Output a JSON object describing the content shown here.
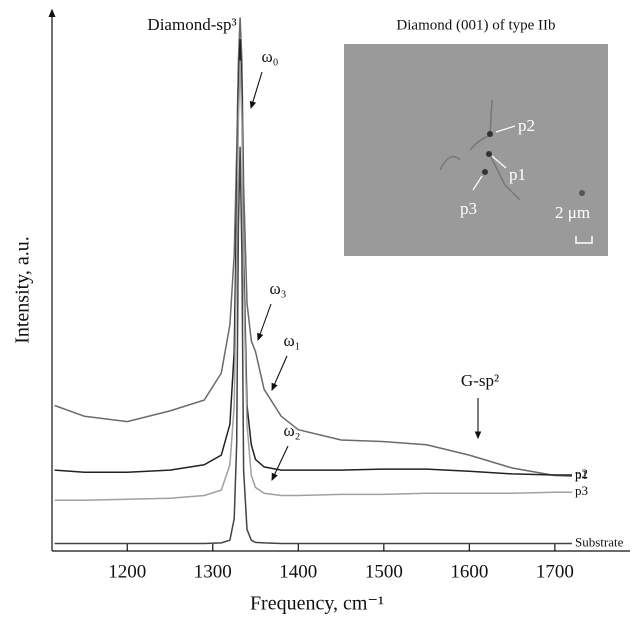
{
  "chart_data": {
    "type": "line",
    "xlabel": "Frequency, cm⁻¹",
    "ylabel": "Intensity, a.u.",
    "x": [
      1115,
      1150,
      1200,
      1250,
      1290,
      1310,
      1320,
      1325,
      1328,
      1330,
      1332,
      1334,
      1336,
      1340,
      1345,
      1350,
      1360,
      1380,
      1400,
      1450,
      1500,
      1550,
      1600,
      1650,
      1700,
      1720
    ],
    "series": [
      {
        "name": "p1",
        "color": "#6a6a6a",
        "values": [
          27,
          25,
          24,
          26,
          28,
          33,
          42,
          55,
          74,
          91,
          99,
          91,
          68,
          46,
          39,
          37,
          30,
          25,
          22.5,
          20.6,
          20.3,
          19.7,
          17.8,
          15.4,
          14,
          13.9
        ]
      },
      {
        "name": "p2",
        "color": "#222222",
        "values": [
          15,
          14.6,
          14.6,
          15,
          16,
          17.8,
          23.5,
          37,
          65,
          85,
          95,
          85,
          55,
          27,
          19.7,
          17,
          15.6,
          15,
          15,
          15,
          15.2,
          15.2,
          14.8,
          14.3,
          14.1,
          14.1
        ]
      },
      {
        "name": "p3",
        "color": "#a0a0a0",
        "values": [
          9.4,
          9.4,
          9.6,
          9.8,
          10.3,
          11.3,
          16,
          27,
          55,
          80,
          91,
          80,
          50,
          23.5,
          14,
          11.8,
          10.7,
          10.3,
          10.3,
          10.5,
          10.5,
          10.7,
          10.7,
          10.7,
          10.9,
          10.9
        ]
      },
      {
        "name": "Substrate",
        "color": "#444444",
        "values": [
          1.4,
          1.4,
          1.4,
          1.4,
          1.4,
          1.5,
          2,
          6,
          20,
          60,
          75,
          55,
          15,
          4,
          2,
          1.6,
          1.5,
          1.4,
          1.4,
          1.4,
          1.4,
          1.4,
          1.4,
          1.4,
          1.4,
          1.4
        ]
      }
    ],
    "xlim": [
      1112,
      1782
    ],
    "ylim": [
      0,
      100
    ],
    "xticks": [
      1200,
      1300,
      1400,
      1500,
      1600,
      1700
    ],
    "annotations": [
      "Diamond-sp³",
      "ω₀",
      "ω₃",
      "ω₁",
      "ω₂",
      "G-sp²"
    ],
    "inset": {
      "title": "Diamond (001) of type IIb",
      "labels": [
        "p2",
        "p1",
        "p3"
      ],
      "scale": "2 μm"
    }
  }
}
